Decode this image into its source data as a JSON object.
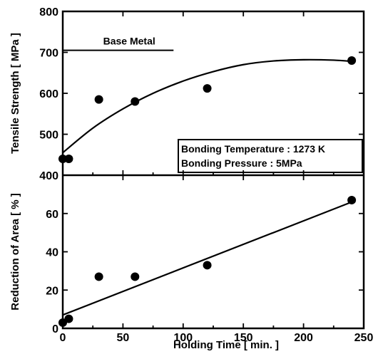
{
  "chart_data": [
    {
      "type": "scatter",
      "xlabel": "Holding Time [ min. ]",
      "ylabel": "Tensile Strength [ MPa ]",
      "xlim": [
        0,
        250
      ],
      "ylim": [
        400,
        800
      ],
      "x_ticks": [
        0,
        50,
        100,
        150,
        200,
        250
      ],
      "y_ticks": [
        400,
        500,
        600,
        700,
        800
      ],
      "grid": false,
      "series": [
        {
          "x": [
            0,
            5,
            30,
            60,
            120,
            240
          ],
          "y": [
            440,
            440,
            585,
            580,
            612,
            680
          ]
        }
      ],
      "fit_curve": {
        "x": [
          0,
          25,
          50,
          75,
          100,
          125,
          150,
          175,
          200,
          225,
          240
        ],
        "y": [
          455,
          515,
          562,
          600,
          630,
          653,
          670,
          679,
          682,
          681,
          678
        ]
      },
      "reference_line": {
        "label": "Base Metal",
        "y": 705,
        "x": [
          0,
          92
        ]
      },
      "annotation": [
        "Bonding Temperature : 1273 K",
        "Bonding Pressure : 5MPa"
      ]
    },
    {
      "type": "scatter",
      "xlabel": "Holding Time [ min. ]",
      "ylabel": "Reduction of Area [ % ]",
      "xlim": [
        0,
        250
      ],
      "ylim": [
        0,
        80
      ],
      "x_ticks": [
        0,
        50,
        100,
        150,
        200,
        250
      ],
      "y_ticks": [
        0,
        20,
        40,
        60
      ],
      "grid": false,
      "series": [
        {
          "x": [
            0,
            5,
            30,
            60,
            120,
            240
          ],
          "y": [
            3,
            5,
            27,
            27,
            33,
            67
          ]
        }
      ],
      "fit_curve": {
        "x": [
          0,
          240
        ],
        "y": [
          7,
          66
        ]
      }
    }
  ]
}
